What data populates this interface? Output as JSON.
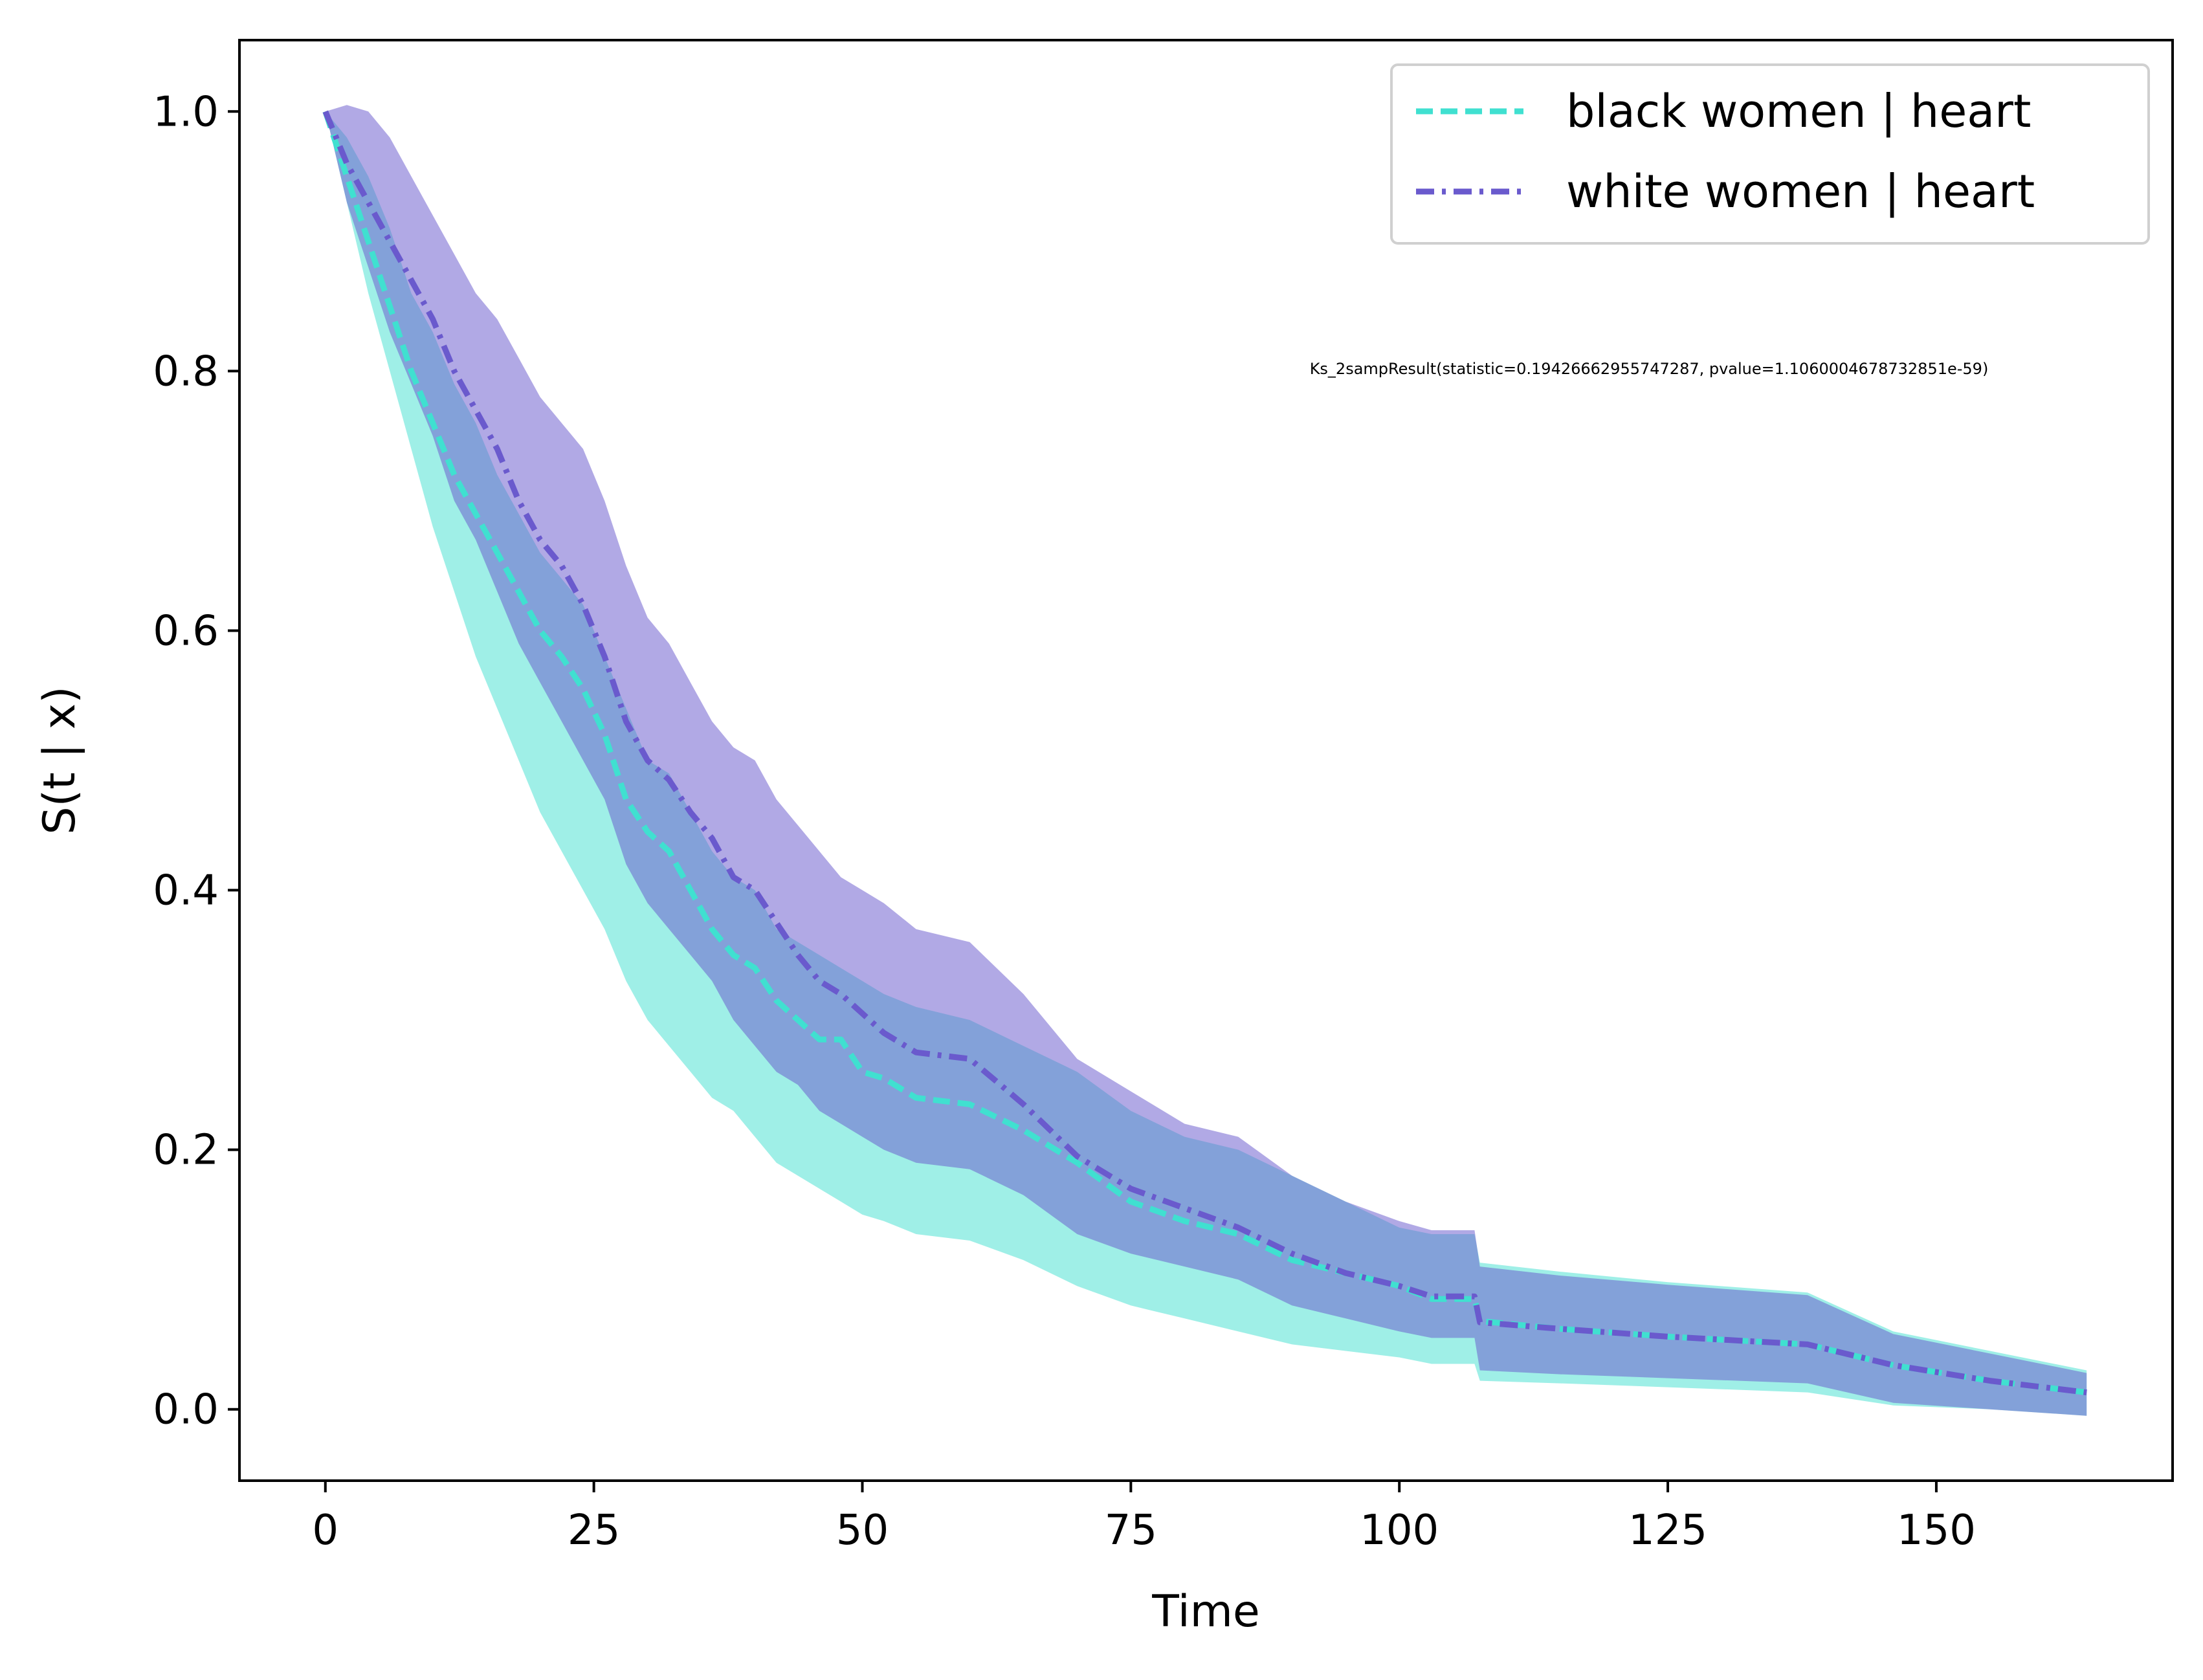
{
  "chart_data": {
    "type": "line",
    "xlabel": "Time",
    "ylabel": "S(t | x)",
    "xlim": [
      -8,
      172
    ],
    "ylim": [
      -0.055,
      1.055
    ],
    "xticks": [
      0,
      25,
      50,
      75,
      100,
      125,
      150
    ],
    "xtick_labels": [
      "0",
      "25",
      "50",
      "75",
      "100",
      "125",
      "150"
    ],
    "yticks": [
      0.0,
      0.2,
      0.4,
      0.6,
      0.8,
      1.0
    ],
    "ytick_labels": [
      "0.0",
      "0.2",
      "0.4",
      "0.6",
      "0.8",
      "1.0"
    ],
    "grid": false,
    "legend_position": "top-right",
    "annotation": "Ks_2sampResult(statistic=0.19426662955747287, pvalue=1.1060004678732851e-59)",
    "series": [
      {
        "name": "black women | heart",
        "color": "#40e0d0",
        "band_color": "#40e0d0",
        "line_style": "dashed",
        "x": [
          0,
          2,
          4,
          6,
          8,
          10,
          12,
          14,
          16,
          18,
          20,
          22,
          24,
          26,
          28,
          30,
          32,
          34,
          36,
          38,
          40,
          42,
          44,
          46,
          48,
          50,
          52,
          55,
          60,
          65,
          70,
          75,
          80,
          85,
          90,
          95,
          100,
          103,
          107,
          107.5,
          115,
          125,
          138,
          146,
          155,
          164
        ],
        "y": [
          1.0,
          0.95,
          0.9,
          0.85,
          0.8,
          0.76,
          0.72,
          0.69,
          0.66,
          0.63,
          0.6,
          0.58,
          0.555,
          0.52,
          0.47,
          0.445,
          0.43,
          0.4,
          0.37,
          0.35,
          0.34,
          0.315,
          0.3,
          0.285,
          0.285,
          0.26,
          0.255,
          0.24,
          0.235,
          0.215,
          0.19,
          0.16,
          0.145,
          0.135,
          0.115,
          0.105,
          0.095,
          0.085,
          0.085,
          0.068,
          0.062,
          0.056,
          0.05,
          0.034,
          0.022,
          0.013
        ],
        "lower": [
          1.0,
          0.93,
          0.86,
          0.8,
          0.74,
          0.68,
          0.63,
          0.58,
          0.54,
          0.5,
          0.46,
          0.43,
          0.4,
          0.37,
          0.33,
          0.3,
          0.28,
          0.26,
          0.24,
          0.23,
          0.21,
          0.19,
          0.18,
          0.17,
          0.16,
          0.15,
          0.145,
          0.135,
          0.13,
          0.115,
          0.095,
          0.08,
          0.07,
          0.06,
          0.05,
          0.045,
          0.04,
          0.035,
          0.035,
          0.022,
          0.02,
          0.017,
          0.013,
          0.003,
          0.0,
          -0.005
        ],
        "upper": [
          1.0,
          0.98,
          0.95,
          0.91,
          0.86,
          0.83,
          0.79,
          0.76,
          0.72,
          0.69,
          0.66,
          0.64,
          0.62,
          0.58,
          0.54,
          0.5,
          0.49,
          0.46,
          0.43,
          0.41,
          0.4,
          0.37,
          0.36,
          0.35,
          0.34,
          0.33,
          0.32,
          0.31,
          0.3,
          0.28,
          0.26,
          0.23,
          0.21,
          0.2,
          0.18,
          0.16,
          0.14,
          0.135,
          0.135,
          0.113,
          0.106,
          0.098,
          0.09,
          0.06,
          0.045,
          0.03
        ]
      },
      {
        "name": "white women | heart",
        "color": "#6a5acd",
        "band_color": "#6a5acd",
        "line_style": "dashdot",
        "x": [
          0,
          2,
          4,
          6,
          8,
          10,
          12,
          14,
          16,
          18,
          20,
          22,
          24,
          26,
          28,
          30,
          32,
          34,
          36,
          38,
          40,
          42,
          44,
          46,
          48,
          50,
          52,
          55,
          60,
          65,
          70,
          75,
          80,
          85,
          90,
          95,
          100,
          103,
          107,
          107.5,
          115,
          125,
          138,
          146,
          155,
          164
        ],
        "y": [
          1.0,
          0.96,
          0.93,
          0.9,
          0.87,
          0.84,
          0.8,
          0.77,
          0.74,
          0.7,
          0.67,
          0.65,
          0.62,
          0.58,
          0.53,
          0.5,
          0.485,
          0.46,
          0.44,
          0.41,
          0.4,
          0.375,
          0.35,
          0.33,
          0.32,
          0.305,
          0.29,
          0.275,
          0.27,
          0.235,
          0.195,
          0.17,
          0.155,
          0.14,
          0.12,
          0.105,
          0.095,
          0.087,
          0.087,
          0.067,
          0.062,
          0.056,
          0.05,
          0.034,
          0.022,
          0.013
        ],
        "lower": [
          1.0,
          0.93,
          0.88,
          0.83,
          0.79,
          0.75,
          0.7,
          0.67,
          0.63,
          0.59,
          0.56,
          0.53,
          0.5,
          0.47,
          0.42,
          0.39,
          0.37,
          0.35,
          0.33,
          0.3,
          0.28,
          0.26,
          0.25,
          0.23,
          0.22,
          0.21,
          0.2,
          0.19,
          0.185,
          0.165,
          0.135,
          0.12,
          0.11,
          0.1,
          0.08,
          0.07,
          0.06,
          0.055,
          0.055,
          0.03,
          0.027,
          0.024,
          0.02,
          0.005,
          0.0,
          -0.005
        ],
        "upper": [
          1.0,
          1.005,
          1.0,
          0.98,
          0.95,
          0.92,
          0.89,
          0.86,
          0.84,
          0.81,
          0.78,
          0.76,
          0.74,
          0.7,
          0.65,
          0.61,
          0.59,
          0.56,
          0.53,
          0.51,
          0.5,
          0.47,
          0.45,
          0.43,
          0.41,
          0.4,
          0.39,
          0.37,
          0.36,
          0.32,
          0.27,
          0.245,
          0.22,
          0.21,
          0.18,
          0.16,
          0.145,
          0.138,
          0.138,
          0.11,
          0.103,
          0.096,
          0.088,
          0.058,
          0.043,
          0.028
        ]
      }
    ]
  }
}
